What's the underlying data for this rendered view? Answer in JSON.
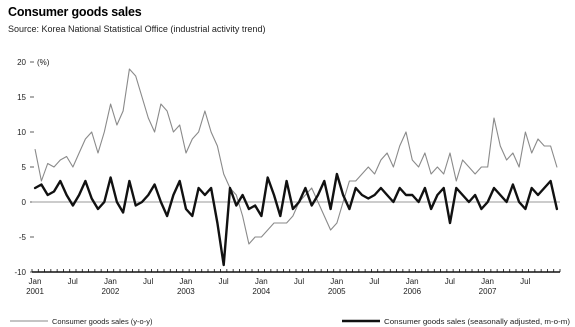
{
  "chart_data": {
    "type": "line",
    "title": "Consumer goods sales",
    "subtitle": "Source: Korea National Statistical Office (industrial activity trend)",
    "yunit": "(%)",
    "ylim": [
      -10,
      20
    ],
    "yticks": [
      20,
      15,
      10,
      5,
      0,
      -5,
      -10
    ],
    "x_start": "2001-01",
    "x_end": "2007-12",
    "xtick_labels": [
      {
        "label": "Jan",
        "year": "2001",
        "month": 0
      },
      {
        "label": "Jul",
        "year": "",
        "month": 6
      },
      {
        "label": "Jan",
        "year": "2002",
        "month": 12
      },
      {
        "label": "Jul",
        "year": "",
        "month": 18
      },
      {
        "label": "Jan",
        "year": "2003",
        "month": 24
      },
      {
        "label": "Jul",
        "year": "",
        "month": 30
      },
      {
        "label": "Jan",
        "year": "2004",
        "month": 36
      },
      {
        "label": "Jul",
        "year": "",
        "month": 42
      },
      {
        "label": "Jan",
        "year": "2005",
        "month": 48
      },
      {
        "label": "Jul",
        "year": "",
        "month": 54
      },
      {
        "label": "Jan",
        "year": "2006",
        "month": 60
      },
      {
        "label": "Jul",
        "year": "",
        "month": 66
      },
      {
        "label": "Jan",
        "year": "2007",
        "month": 72
      },
      {
        "label": "Jul",
        "year": "",
        "month": 78
      }
    ],
    "series": [
      {
        "name": "Consumer goods sales (y-o-y)",
        "color": "#8a8a8a",
        "values": [
          7.5,
          3,
          5.5,
          5,
          6,
          6.5,
          5,
          7,
          9,
          10,
          7,
          10,
          14,
          11,
          13,
          19,
          18,
          15,
          12,
          10,
          14,
          13,
          10,
          11,
          7,
          9,
          10,
          13,
          10,
          8,
          4,
          2,
          1,
          -2,
          -6,
          -5,
          -5,
          -4,
          -3,
          -3,
          -3,
          -2,
          0,
          1,
          2,
          0,
          -2,
          -4,
          -3,
          0,
          3,
          3,
          4,
          5,
          4,
          6,
          7,
          5,
          8,
          10,
          6,
          5,
          7,
          4,
          5,
          4,
          7,
          3,
          6,
          5,
          4,
          5,
          5,
          12,
          8,
          6,
          7,
          5,
          10,
          7,
          9,
          8,
          8,
          5
        ]
      },
      {
        "name": "Consumer goods sales (seasonally adjusted, m-o-m)",
        "color": "#111111",
        "values": [
          2,
          2.5,
          1,
          1.5,
          3,
          1,
          -0.5,
          1,
          3,
          0.5,
          -1,
          0,
          3.5,
          0,
          -1.5,
          3,
          -0.5,
          0,
          1,
          2.5,
          0,
          -2,
          1,
          3,
          -1,
          -2,
          2,
          1,
          2,
          -3,
          -9,
          2,
          -0.5,
          1,
          -1,
          -0.5,
          -2,
          3.5,
          1,
          -2,
          3,
          -1,
          0,
          2,
          -0.5,
          1,
          3,
          -1,
          4,
          1,
          -1,
          2,
          1,
          0.5,
          1,
          2,
          1,
          0,
          2,
          1,
          1,
          0,
          2,
          -1,
          1,
          2,
          -3,
          2,
          1,
          0,
          1,
          -1,
          0,
          2,
          1,
          0,
          2.5,
          0,
          -1,
          2,
          1,
          2,
          3,
          -1
        ]
      }
    ]
  }
}
